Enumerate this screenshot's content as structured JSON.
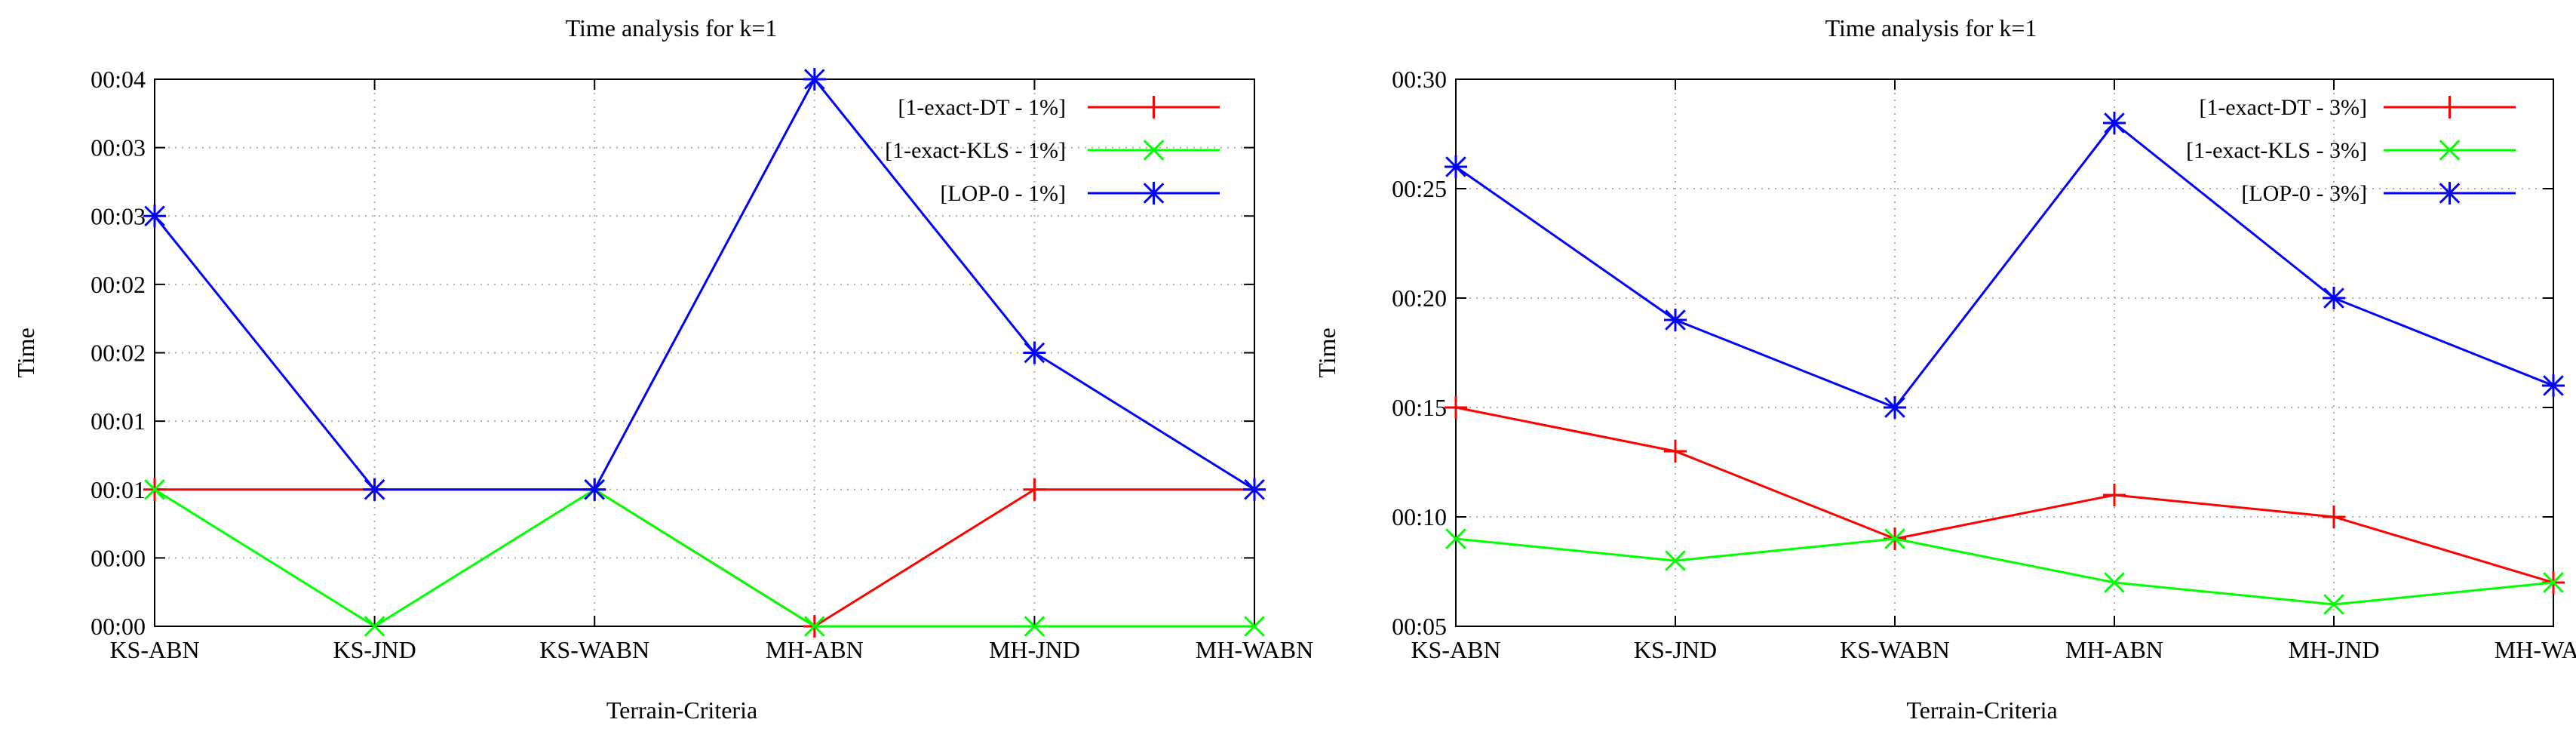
{
  "chart_data": [
    {
      "type": "line",
      "title": "Time analysis for k=1",
      "xlabel": "Terrain-Criteria",
      "ylabel": "Time",
      "categories": [
        "KS-ABN",
        "KS-JND",
        "KS-WABN",
        "MH-ABN",
        "MH-JND",
        "MH-WABN"
      ],
      "y_tick_values": [
        0,
        1,
        2,
        3,
        4,
        5,
        6,
        7,
        8
      ],
      "y_tick_labels": [
        "00:00",
        "00:00",
        "00:01",
        "00:01",
        "00:02",
        "00:02",
        "00:03",
        "00:03",
        "00:04"
      ],
      "ylim": [
        0,
        8
      ],
      "grid": true,
      "legend_position": "top-right",
      "series": [
        {
          "name": "[1-exact-DT - 1%]",
          "color": "#ff0000",
          "marker": "plus",
          "values": [
            2,
            2,
            2,
            0,
            2,
            2
          ]
        },
        {
          "name": "[1-exact-KLS - 1%]",
          "color": "#00ff00",
          "marker": "x",
          "values": [
            2,
            0,
            2,
            0,
            0,
            0
          ]
        },
        {
          "name": "[LOP-0 - 1%]",
          "color": "#0000ff",
          "marker": "star",
          "values": [
            6,
            2,
            2,
            8,
            4,
            2
          ]
        }
      ]
    },
    {
      "type": "line",
      "title": "Time analysis for k=1",
      "xlabel": "Terrain-Criteria",
      "ylabel": "Time",
      "categories": [
        "KS-ABN",
        "KS-JND",
        "KS-WABN",
        "MH-ABN",
        "MH-JND",
        "MH-WABN"
      ],
      "y_tick_values": [
        5,
        10,
        15,
        20,
        25,
        30
      ],
      "y_tick_labels": [
        "00:05",
        "00:10",
        "00:15",
        "00:20",
        "00:25",
        "00:30"
      ],
      "ylim": [
        5,
        30
      ],
      "grid": true,
      "legend_position": "top-right",
      "series": [
        {
          "name": "[1-exact-DT - 3%]",
          "color": "#ff0000",
          "marker": "plus",
          "values": [
            15,
            13,
            9,
            11,
            10,
            7
          ]
        },
        {
          "name": "[1-exact-KLS - 3%]",
          "color": "#00ff00",
          "marker": "x",
          "values": [
            9,
            8,
            9,
            7,
            6,
            7
          ]
        },
        {
          "name": "[LOP-0 - 3%]",
          "color": "#0000ff",
          "marker": "star",
          "values": [
            26,
            19,
            15,
            28,
            20,
            16
          ]
        }
      ]
    }
  ]
}
